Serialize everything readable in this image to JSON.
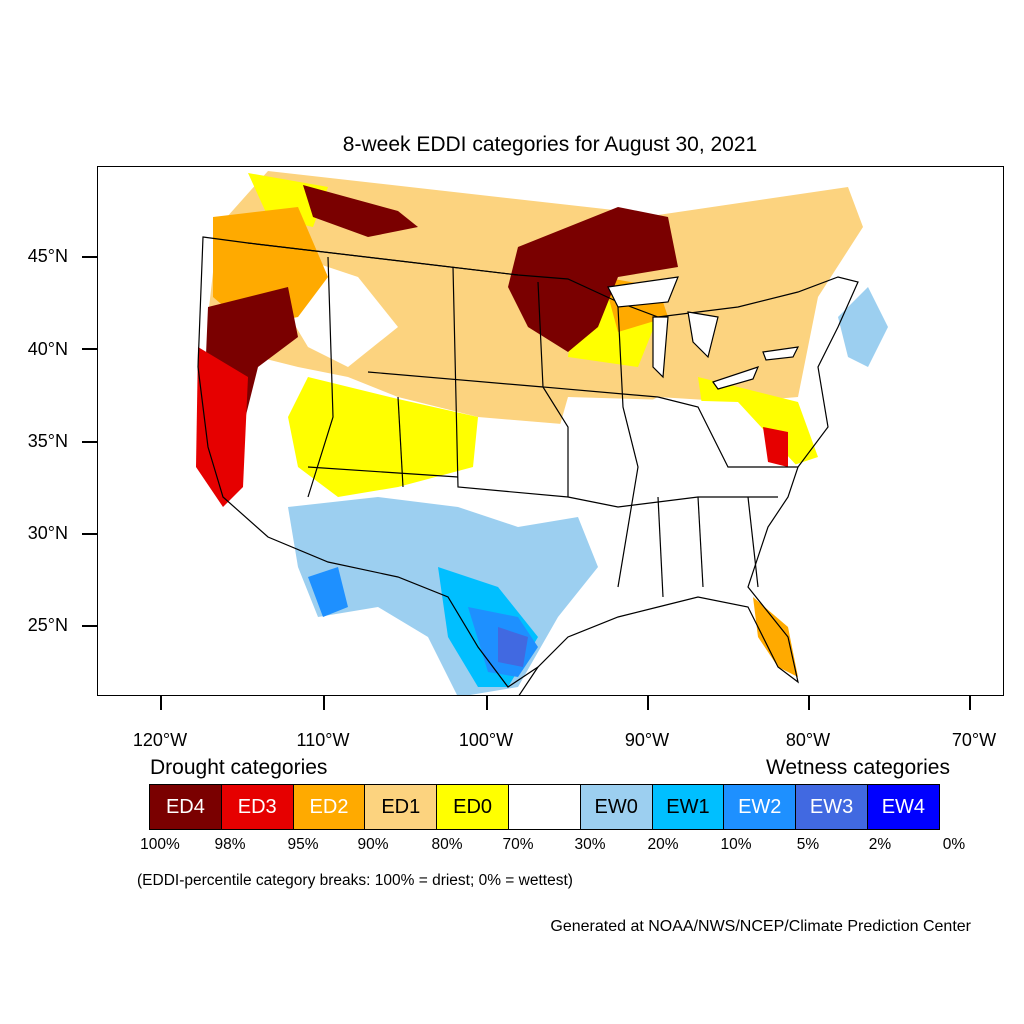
{
  "title": "8-week EDDI categories for August 30, 2021",
  "map": {
    "lat_labels": [
      "45°N",
      "40°N",
      "35°N",
      "30°N",
      "25°N"
    ],
    "lon_labels": [
      "120°W",
      "110°W",
      "100°W",
      "90°W",
      "80°W",
      "70°W"
    ]
  },
  "legend": {
    "drought_heading": "Drought categories",
    "wetness_heading": "Wetness categories",
    "categories": [
      {
        "label": "ED4",
        "color": "#7a0000",
        "text_color": "#ffffff"
      },
      {
        "label": "ED3",
        "color": "#e60000",
        "text_color": "#ffffff"
      },
      {
        "label": "ED2",
        "color": "#ffaa00",
        "text_color": "#ffffff"
      },
      {
        "label": "ED1",
        "color": "#fcd37f",
        "text_color": "#000000"
      },
      {
        "label": "ED0",
        "color": "#ffff00",
        "text_color": "#000000"
      },
      {
        "label": "",
        "color": "#ffffff",
        "text_color": "#000000"
      },
      {
        "label": "EW0",
        "color": "#9ccff0",
        "text_color": "#000000"
      },
      {
        "label": "EW1",
        "color": "#00bfff",
        "text_color": "#000000"
      },
      {
        "label": "EW2",
        "color": "#1e90ff",
        "text_color": "#ffffff"
      },
      {
        "label": "EW3",
        "color": "#4169e1",
        "text_color": "#ffffff"
      },
      {
        "label": "EW4",
        "color": "#0000ff",
        "text_color": "#ffffff"
      }
    ],
    "breaks": [
      "100%",
      "98%",
      "95%",
      "90%",
      "80%",
      "70%",
      "30%",
      "20%",
      "10%",
      "5%",
      "2%",
      "0%"
    ]
  },
  "note": "(EDDI-percentile category breaks: 100% = driest; 0% = wettest)",
  "credit": "Generated at NOAA/NWS/NCEP/Climate Prediction Center"
}
